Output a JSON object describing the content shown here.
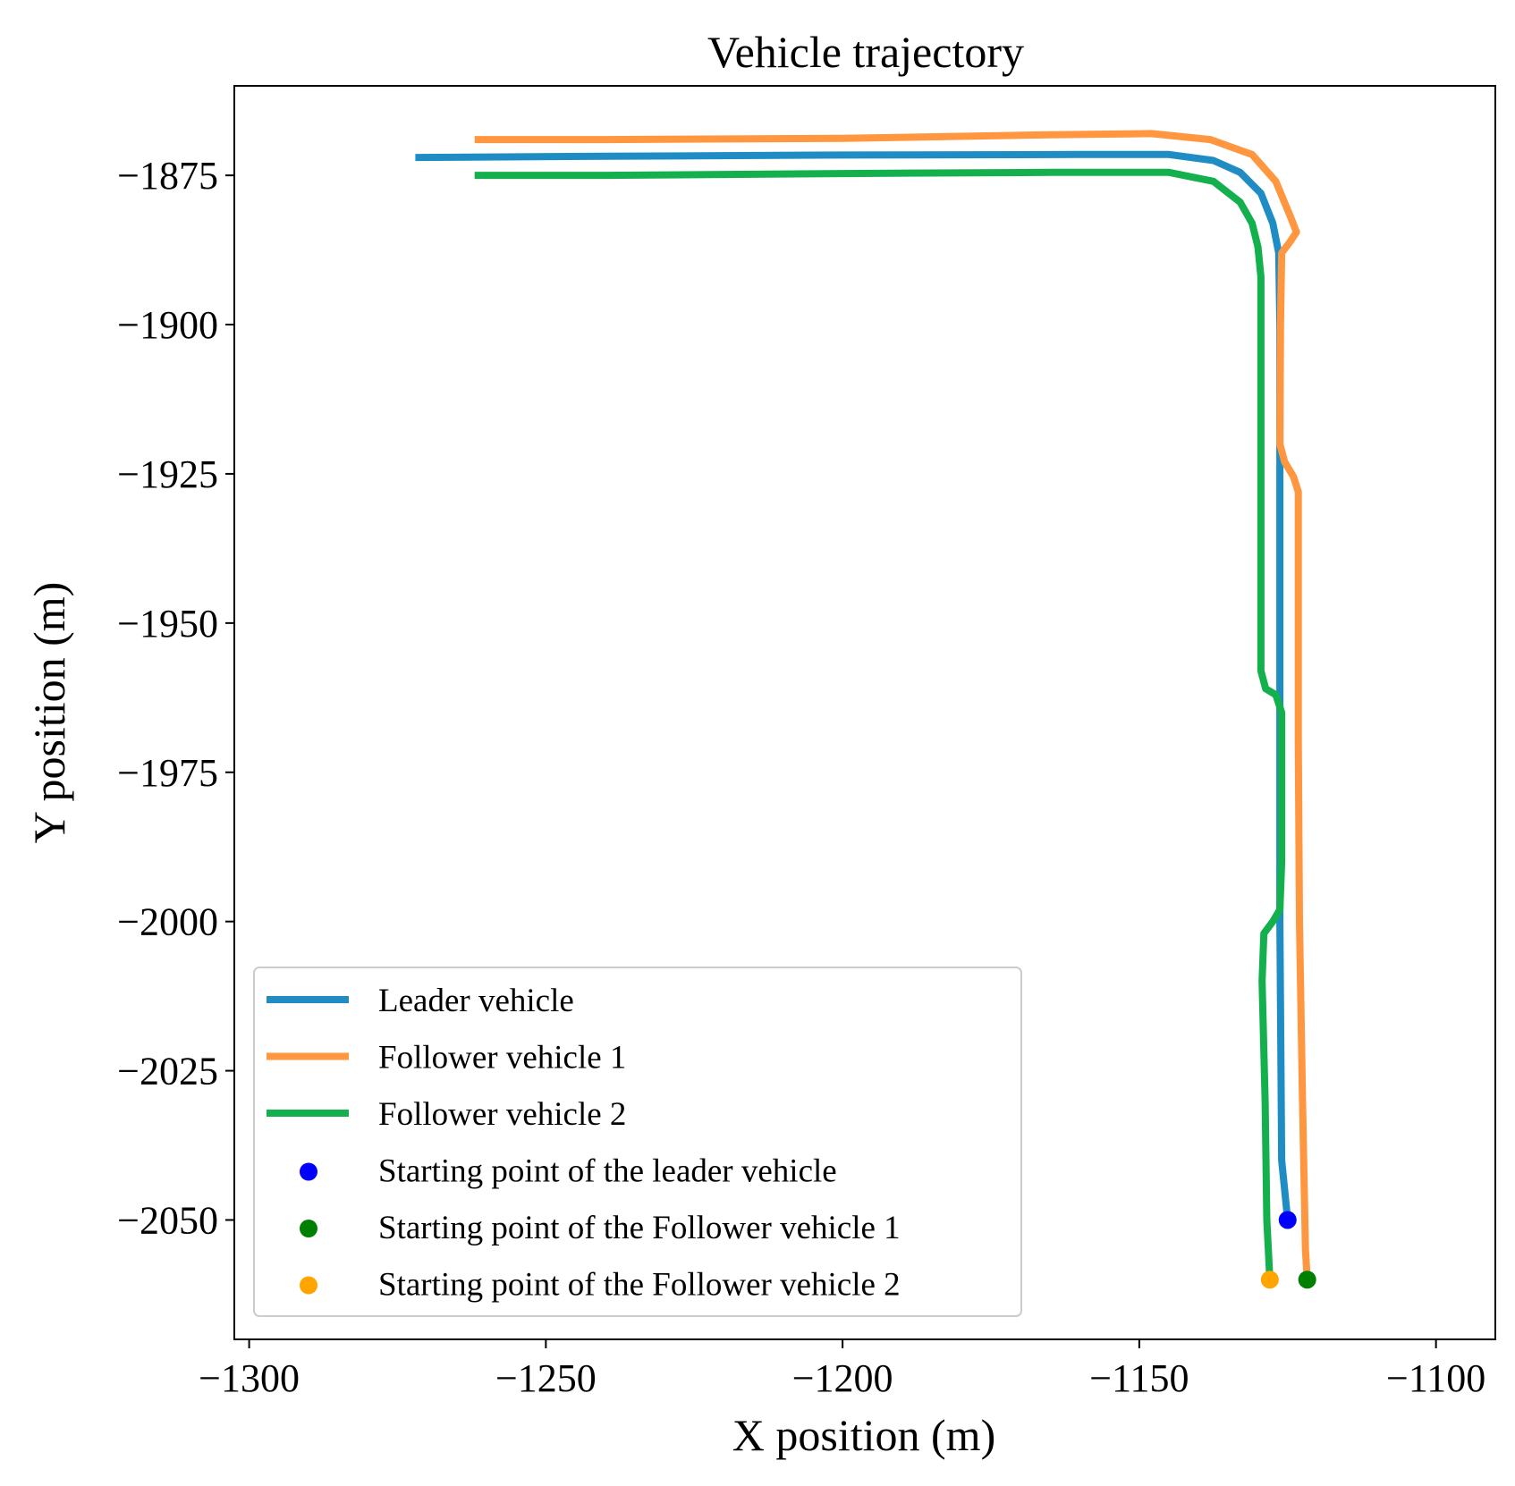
{
  "chart_data": {
    "type": "line",
    "title": "Vehicle trajectory",
    "xlabel": "X position (m)",
    "ylabel": "Y position (m)",
    "xlim": [
      -1302.5,
      -1090
    ],
    "ylim": [
      -2070,
      -1860
    ],
    "xticks": [
      -1300,
      -1250,
      -1200,
      -1150,
      -1100
    ],
    "yticks": [
      -1875,
      -1900,
      -1925,
      -1950,
      -1975,
      -2000,
      -2025,
      -2050
    ],
    "x_tick_labels": [
      "−1300",
      "−1250",
      "−1200",
      "−1150",
      "−1100"
    ],
    "y_tick_labels": [
      "−1875",
      "−1900",
      "−1925",
      "−1950",
      "−1975",
      "−2000",
      "−2025",
      "−2050"
    ],
    "grid": false,
    "legend_position": "lower-left",
    "series": [
      {
        "name": "Leader vehicle",
        "color": "#1f8dc4",
        "kind": "line",
        "points": [
          [
            -1125,
            -2050
          ],
          [
            -1126,
            -2040
          ],
          [
            -1126.3,
            -2000
          ],
          [
            -1126.3,
            -1950
          ],
          [
            -1126.3,
            -1900
          ],
          [
            -1126.5,
            -1888
          ],
          [
            -1127.5,
            -1883
          ],
          [
            -1129.5,
            -1878
          ],
          [
            -1133,
            -1874.5
          ],
          [
            -1137.5,
            -1872.5
          ],
          [
            -1145,
            -1871.5
          ],
          [
            -1160,
            -1871.5
          ],
          [
            -1200,
            -1871.6
          ],
          [
            -1240,
            -1871.8
          ],
          [
            -1272,
            -1872
          ]
        ]
      },
      {
        "name": "Follower vehicle 1",
        "color": "#ff9640",
        "kind": "line",
        "points": [
          [
            -1121.7,
            -2060
          ],
          [
            -1122,
            -2055
          ],
          [
            -1122.5,
            -2030
          ],
          [
            -1123,
            -2000
          ],
          [
            -1123.2,
            -1970
          ],
          [
            -1123.2,
            -1928
          ],
          [
            -1124,
            -1925.5
          ],
          [
            -1125.5,
            -1923
          ],
          [
            -1126.3,
            -1920
          ],
          [
            -1126.2,
            -1900
          ],
          [
            -1126,
            -1888
          ],
          [
            -1124.5,
            -1886
          ],
          [
            -1123.5,
            -1884.5
          ],
          [
            -1124.5,
            -1882
          ],
          [
            -1127,
            -1876
          ],
          [
            -1131,
            -1871.5
          ],
          [
            -1138,
            -1869
          ],
          [
            -1148,
            -1868
          ],
          [
            -1165,
            -1868.2
          ],
          [
            -1200,
            -1868.8
          ],
          [
            -1240,
            -1869
          ],
          [
            -1262,
            -1869
          ]
        ]
      },
      {
        "name": "Follower vehicle 2",
        "color": "#13b04d",
        "kind": "line",
        "points": [
          [
            -1128,
            -2060
          ],
          [
            -1128.5,
            -2050
          ],
          [
            -1128.8,
            -2030
          ],
          [
            -1129.3,
            -2010
          ],
          [
            -1129,
            -2002
          ],
          [
            -1127.5,
            -2000
          ],
          [
            -1126.3,
            -1998
          ],
          [
            -1126,
            -1990
          ],
          [
            -1126,
            -1965
          ],
          [
            -1127,
            -1962
          ],
          [
            -1128.7,
            -1961
          ],
          [
            -1129.5,
            -1958
          ],
          [
            -1129.5,
            -1935
          ],
          [
            -1129.5,
            -1892
          ],
          [
            -1130,
            -1887
          ],
          [
            -1131,
            -1883
          ],
          [
            -1133,
            -1879.5
          ],
          [
            -1137.5,
            -1876
          ],
          [
            -1145,
            -1874.5
          ],
          [
            -1165,
            -1874.5
          ],
          [
            -1200,
            -1874.7
          ],
          [
            -1240,
            -1875
          ],
          [
            -1262,
            -1875
          ]
        ]
      },
      {
        "name": "Starting point of the leader vehicle",
        "color": "#0000ff",
        "kind": "point",
        "points": [
          [
            -1125,
            -2050
          ]
        ]
      },
      {
        "name": "Starting point of the Follower vehicle 1",
        "color": "#008000",
        "kind": "point",
        "points": [
          [
            -1121.7,
            -2060
          ]
        ]
      },
      {
        "name": "Starting point of the Follower vehicle 2",
        "color": "#ffa500",
        "kind": "point",
        "points": [
          [
            -1128,
            -2060
          ]
        ]
      }
    ]
  }
}
